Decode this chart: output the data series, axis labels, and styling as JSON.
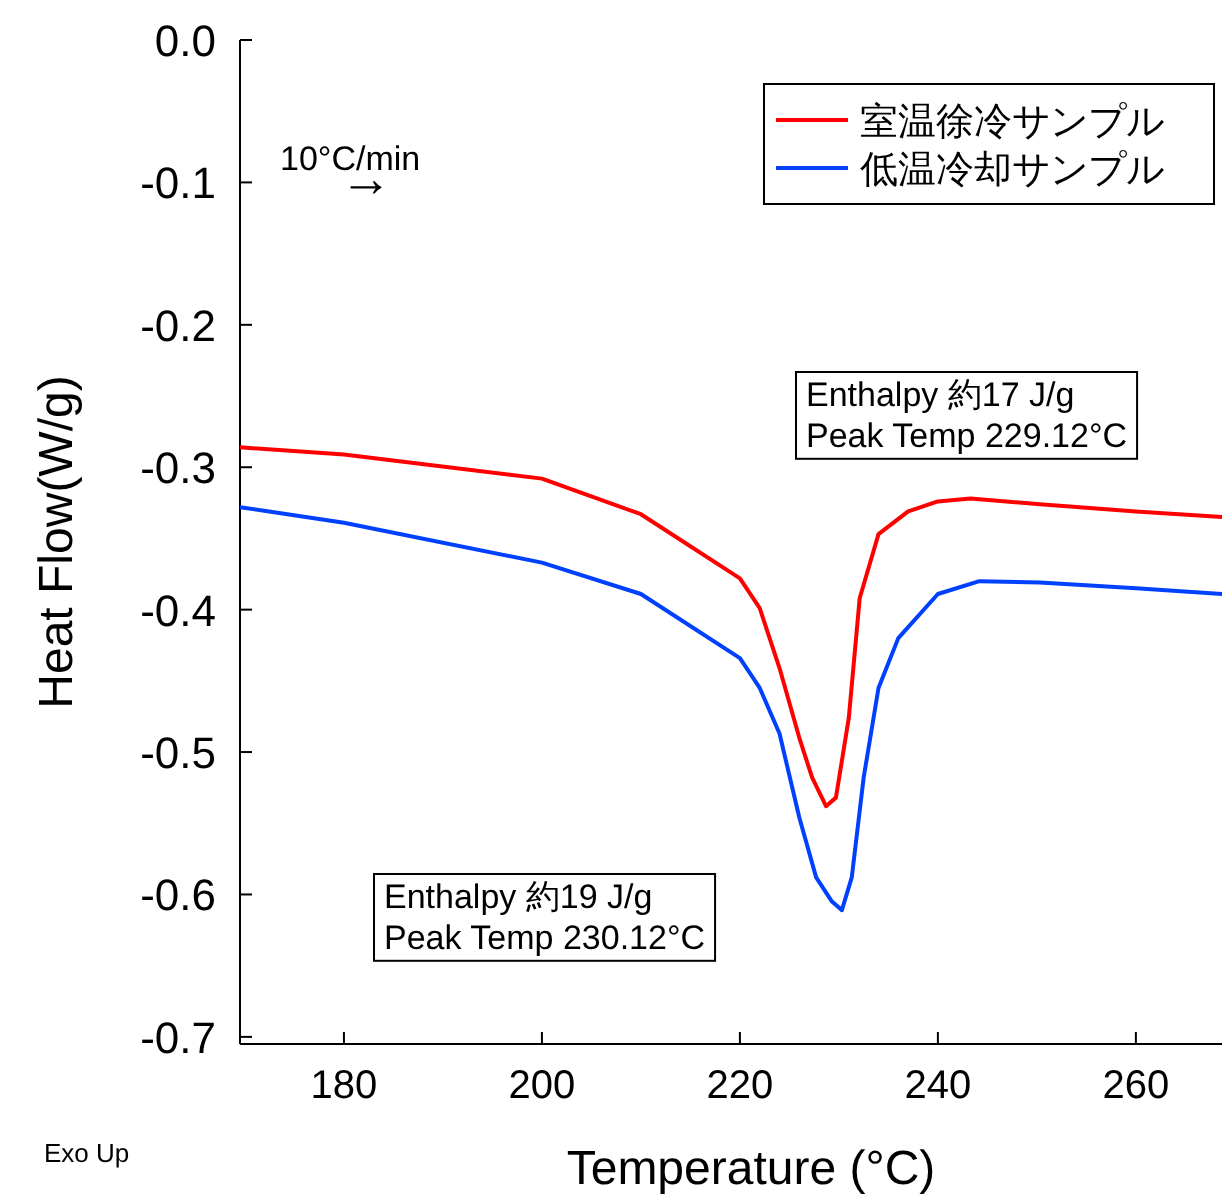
{
  "chart_data": {
    "type": "line",
    "xlabel": "Temperature (°C)",
    "ylabel": "Heat Flow(W/g)",
    "xlim": [
      169.5,
      268.7
    ],
    "ylim": [
      -0.705,
      0.0
    ],
    "xticks": [
      180,
      200,
      220,
      240,
      260
    ],
    "yticks": [
      {
        "value": 0,
        "label": "0.0"
      },
      -0.1,
      -0.2,
      -0.3,
      -0.4,
      -0.5,
      -0.6,
      -0.7
    ],
    "legend": "top right",
    "grid": false,
    "marker": "none",
    "line_style": "solid",
    "series": [
      {
        "name": "室温徐冷サンプル",
        "color": "#ff0000",
        "x": [
          169.5,
          180,
          200,
          210,
          220,
          222,
          224,
          226,
          227.3,
          228.7,
          229.7,
          231,
          232.1,
          234,
          237,
          240,
          243.3,
          250.3,
          260,
          268.7
        ],
        "values": [
          -0.286,
          -0.291,
          -0.308,
          -0.333,
          -0.378,
          -0.399,
          -0.441,
          -0.49,
          -0.518,
          -0.538,
          -0.532,
          -0.476,
          -0.392,
          -0.347,
          -0.331,
          -0.324,
          -0.322,
          -0.326,
          -0.331,
          -0.335
        ]
      },
      {
        "name": "低温冷却サンプル",
        "color": "#0040ff",
        "x": [
          169.5,
          180,
          200,
          210,
          220,
          222,
          224,
          226,
          227.7,
          229.3,
          230.3,
          231.3,
          232.5,
          234,
          236,
          240,
          244.2,
          250.3,
          260,
          268.7
        ],
        "values": [
          -0.328,
          -0.339,
          -0.367,
          -0.389,
          -0.434,
          -0.455,
          -0.487,
          -0.546,
          -0.588,
          -0.605,
          -0.611,
          -0.588,
          -0.518,
          -0.455,
          -0.42,
          -0.389,
          -0.38,
          -0.381,
          -0.385,
          -0.389
        ]
      }
    ],
    "annotations": [
      "10°C/min",
      "→",
      "Enthalpy 約17 J/g\nPeak Temp 229.12°C",
      "Enthalpy 約19 J/g\nPeak Temp 230.12°C",
      "Exo Up"
    ]
  }
}
